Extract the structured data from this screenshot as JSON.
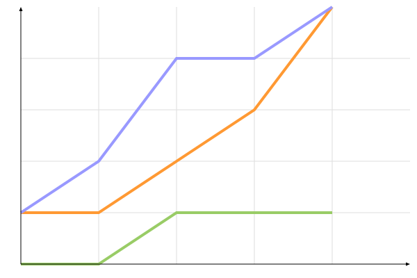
{
  "chart_data": {
    "type": "line",
    "title": "",
    "xlabel": "",
    "ylabel": "",
    "x": [
      0,
      1,
      2,
      3,
      4
    ],
    "xlim": [
      0,
      5
    ],
    "ylim": [
      0,
      5
    ],
    "grid": true,
    "legend": "none",
    "series": [
      {
        "color": "#9999ff",
        "values": [
          1,
          2,
          4,
          4,
          5
        ]
      },
      {
        "color": "#ff9933",
        "values": [
          1,
          1,
          2,
          3,
          5
        ]
      },
      {
        "color": "#99cc66",
        "values": [
          0,
          0,
          1,
          1,
          1
        ]
      }
    ]
  }
}
